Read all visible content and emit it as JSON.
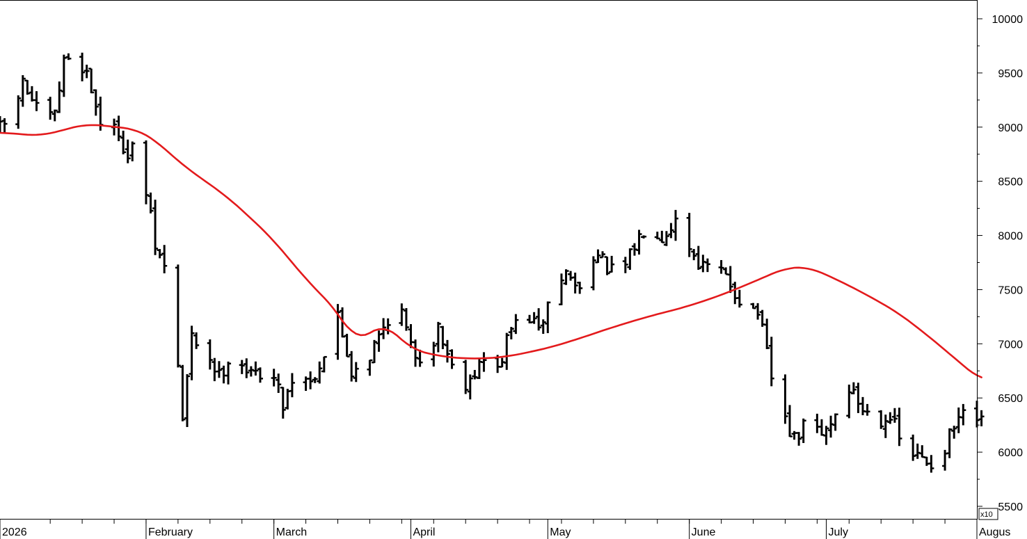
{
  "chart_data": {
    "type": "ohlc",
    "title": "",
    "y_axis": {
      "position": "right",
      "ylim": [
        5500,
        10000
      ],
      "ticks": [
        "10000",
        "9500",
        "9000",
        "8500",
        "8000",
        "7500",
        "7000",
        "6500",
        "6000",
        "5500"
      ],
      "multiplier_label": "x10",
      "grid": false
    },
    "x_axis": {
      "labels": [
        "2026",
        "February",
        "March",
        "April",
        "May",
        "June",
        "July",
        "Augus"
      ],
      "label_dates": [
        "2026-01-01",
        "2026-02-02",
        "2026-03-02",
        "2026-04-01",
        "2026-05-01",
        "2026-06-01",
        "2026-07-01",
        "2026-08-03"
      ],
      "range": [
        "2026-01-01",
        "2026-08-03"
      ],
      "grid": false
    },
    "bar_color": "#000000",
    "moving_average_color": "#e31a1c",
    "price_waypoints": [
      [
        "2026-01-01",
        8980
      ],
      [
        "2026-01-03",
        9050
      ],
      [
        "2026-01-06",
        9400
      ],
      [
        "2026-01-08",
        9250
      ],
      [
        "2026-01-10",
        9050
      ],
      [
        "2026-01-13",
        9100
      ],
      [
        "2026-01-15",
        9600
      ],
      [
        "2026-01-17",
        9700
      ],
      [
        "2026-01-20",
        9500
      ],
      [
        "2026-01-22",
        9200
      ],
      [
        "2026-01-24",
        8920
      ],
      [
        "2026-01-27",
        8980
      ],
      [
        "2026-01-29",
        8700
      ],
      [
        "2026-01-31",
        8900
      ],
      [
        "2026-02-02",
        8400
      ],
      [
        "2026-02-04",
        7900
      ],
      [
        "2026-02-06",
        7700
      ],
      [
        "2026-02-08",
        7300
      ],
      [
        "2026-02-10",
        6300
      ],
      [
        "2026-02-12",
        7050
      ],
      [
        "2026-02-15",
        6950
      ],
      [
        "2026-02-18",
        6700
      ],
      [
        "2026-02-21",
        6950
      ],
      [
        "2026-02-25",
        6700
      ],
      [
        "2026-03-01",
        6800
      ],
      [
        "2026-03-04",
        6450
      ],
      [
        "2026-03-07",
        6800
      ],
      [
        "2026-03-10",
        6650
      ],
      [
        "2026-03-13",
        6900
      ],
      [
        "2026-03-16",
        7250
      ],
      [
        "2026-03-19",
        6750
      ],
      [
        "2026-03-23",
        6900
      ],
      [
        "2026-03-26",
        7150
      ],
      [
        "2026-03-29",
        7450
      ],
      [
        "2026-04-01",
        6950
      ],
      [
        "2026-04-04",
        6850
      ],
      [
        "2026-04-07",
        7150
      ],
      [
        "2026-04-10",
        6800
      ],
      [
        "2026-04-13",
        6650
      ],
      [
        "2026-04-17",
        6850
      ],
      [
        "2026-04-20",
        6750
      ],
      [
        "2026-04-23",
        7150
      ],
      [
        "2026-04-27",
        7250
      ],
      [
        "2026-04-29",
        7100
      ],
      [
        "2026-05-02",
        7500
      ],
      [
        "2026-05-05",
        7650
      ],
      [
        "2026-05-08",
        7500
      ],
      [
        "2026-05-11",
        7850
      ],
      [
        "2026-05-14",
        7700
      ],
      [
        "2026-05-17",
        7600
      ],
      [
        "2026-05-20",
        7900
      ],
      [
        "2026-05-23",
        8150
      ],
      [
        "2026-05-26",
        8000
      ],
      [
        "2026-05-29",
        8150
      ],
      [
        "2026-06-01",
        7900
      ],
      [
        "2026-06-04",
        7700
      ],
      [
        "2026-06-07",
        7700
      ],
      [
        "2026-06-10",
        7550
      ],
      [
        "2026-06-13",
        7350
      ],
      [
        "2026-06-16",
        7300
      ],
      [
        "2026-06-18",
        6900
      ],
      [
        "2026-06-20",
        6450
      ],
      [
        "2026-06-22",
        6300
      ],
      [
        "2026-06-24",
        6100
      ],
      [
        "2026-06-27",
        6300
      ],
      [
        "2026-06-30",
        6150
      ],
      [
        "2026-07-03",
        6350
      ],
      [
        "2026-07-06",
        6600
      ],
      [
        "2026-07-09",
        6400
      ],
      [
        "2026-07-12",
        6300
      ],
      [
        "2026-07-15",
        6350
      ],
      [
        "2026-07-18",
        6000
      ],
      [
        "2026-07-21",
        5950
      ],
      [
        "2026-07-24",
        5900
      ],
      [
        "2026-07-27",
        6050
      ],
      [
        "2026-07-30",
        6300
      ],
      [
        "2026-08-02",
        6350
      ],
      [
        "2026-08-04",
        6250
      ]
    ],
    "moving_average_waypoints": [
      [
        "2026-01-01",
        8950
      ],
      [
        "2026-01-10",
        8920
      ],
      [
        "2026-01-20",
        9030
      ],
      [
        "2026-01-31",
        8980
      ],
      [
        "2026-02-04",
        8880
      ],
      [
        "2026-02-10",
        8650
      ],
      [
        "2026-02-20",
        8350
      ],
      [
        "2026-03-01",
        8000
      ],
      [
        "2026-03-10",
        7550
      ],
      [
        "2026-03-16",
        7300
      ],
      [
        "2026-03-20",
        7000
      ],
      [
        "2026-03-26",
        7200
      ],
      [
        "2026-04-01",
        6950
      ],
      [
        "2026-04-08",
        6880
      ],
      [
        "2026-04-15",
        6860
      ],
      [
        "2026-04-22",
        6880
      ],
      [
        "2026-05-01",
        6960
      ],
      [
        "2026-05-08",
        7050
      ],
      [
        "2026-05-15",
        7150
      ],
      [
        "2026-05-22",
        7240
      ],
      [
        "2026-06-01",
        7350
      ],
      [
        "2026-06-08",
        7450
      ],
      [
        "2026-06-15",
        7570
      ],
      [
        "2026-06-22",
        7700
      ],
      [
        "2026-06-27",
        7710
      ],
      [
        "2026-07-03",
        7600
      ],
      [
        "2026-07-10",
        7450
      ],
      [
        "2026-07-17",
        7280
      ],
      [
        "2026-07-24",
        7050
      ],
      [
        "2026-07-31",
        6800
      ],
      [
        "2026-08-04",
        6660
      ]
    ]
  }
}
